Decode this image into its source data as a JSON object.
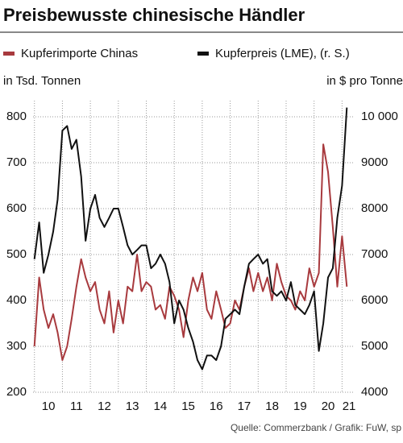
{
  "chart_data": {
    "type": "line",
    "title": "Preisbewusste chinesische Händler",
    "y_label": "in Tsd. Tonnen",
    "y2_label": "in $ pro Tonne",
    "source": "Quelle: Commerzbank / Grafik: FuW, sp",
    "x": [
      2010.0,
      2010.17,
      2010.33,
      2010.5,
      2010.67,
      2010.83,
      2011.0,
      2011.17,
      2011.33,
      2011.5,
      2011.67,
      2011.83,
      2012.0,
      2012.17,
      2012.33,
      2012.5,
      2012.67,
      2012.83,
      2013.0,
      2013.17,
      2013.33,
      2013.5,
      2013.67,
      2013.83,
      2014.0,
      2014.17,
      2014.33,
      2014.5,
      2014.67,
      2014.83,
      2015.0,
      2015.17,
      2015.33,
      2015.5,
      2015.67,
      2015.83,
      2016.0,
      2016.17,
      2016.33,
      2016.5,
      2016.67,
      2016.83,
      2017.0,
      2017.17,
      2017.33,
      2017.5,
      2017.67,
      2017.83,
      2018.0,
      2018.17,
      2018.33,
      2018.5,
      2018.67,
      2018.83,
      2019.0,
      2019.17,
      2019.33,
      2019.5,
      2019.67,
      2019.83,
      2020.0,
      2020.17,
      2020.33,
      2020.5,
      2020.67,
      2020.83,
      2021.0,
      2021.17
    ],
    "series": [
      {
        "name": "Kupferimporte Chinas",
        "color": "#a83a3e",
        "axis": "y",
        "values": [
          300,
          450,
          380,
          340,
          370,
          330,
          270,
          300,
          360,
          430,
          490,
          450,
          420,
          440,
          380,
          350,
          420,
          330,
          400,
          350,
          430,
          420,
          500,
          420,
          440,
          430,
          380,
          390,
          360,
          430,
          410,
          380,
          320,
          400,
          450,
          420,
          460,
          380,
          360,
          420,
          380,
          340,
          350,
          400,
          380,
          430,
          470,
          420,
          460,
          420,
          450,
          400,
          480,
          440,
          410,
          400,
          380,
          420,
          400,
          470,
          430,
          460,
          740,
          680,
          560,
          430,
          540,
          430
        ]
      },
      {
        "name": "Kupferpreis (LME), (r. S.)",
        "color": "#111111",
        "axis": "y2",
        "values": [
          6900,
          7700,
          6600,
          7000,
          7500,
          8200,
          9700,
          9800,
          9300,
          9500,
          8700,
          7300,
          8000,
          8300,
          7800,
          7600,
          7800,
          8000,
          8000,
          7600,
          7200,
          7000,
          7100,
          7200,
          7200,
          6700,
          6800,
          7000,
          6800,
          6400,
          5500,
          6000,
          5800,
          5400,
          5100,
          4700,
          4500,
          4800,
          4800,
          4700,
          5000,
          5600,
          5700,
          5800,
          5700,
          6300,
          6800,
          6900,
          7000,
          6800,
          6900,
          6200,
          6100,
          6200,
          6000,
          6400,
          5900,
          5800,
          5700,
          5900,
          6200,
          4900,
          5500,
          6500,
          6700,
          7800,
          8500,
          10200
        ]
      }
    ],
    "xlim": [
      2009.95,
      2021.45
    ],
    "xgrid": [
      2010,
      2011,
      2012,
      2013,
      2014,
      2015,
      2016,
      2017,
      2018,
      2019,
      2020,
      2021
    ],
    "xticks": [
      {
        "value": 2010.5,
        "label": "10"
      },
      {
        "value": 2011.5,
        "label": "11"
      },
      {
        "value": 2012.5,
        "label": "12"
      },
      {
        "value": 2013.5,
        "label": "13"
      },
      {
        "value": 2014.5,
        "label": "14"
      },
      {
        "value": 2015.5,
        "label": "15"
      },
      {
        "value": 2016.5,
        "label": "16"
      },
      {
        "value": 2017.5,
        "label": "17"
      },
      {
        "value": 2018.5,
        "label": "18"
      },
      {
        "value": 2019.5,
        "label": "19"
      },
      {
        "value": 2020.5,
        "label": "20"
      },
      {
        "value": 2021.25,
        "label": "21"
      }
    ],
    "ylim": [
      200,
      835
    ],
    "yticks": [
      200,
      300,
      400,
      500,
      600,
      700,
      800
    ],
    "y2lim": [
      4000,
      10350
    ],
    "y2ticks": [
      4000,
      5000,
      6000,
      7000,
      8000,
      9000,
      {
        "value": 10000,
        "label": "10 000"
      }
    ],
    "grid": true
  }
}
